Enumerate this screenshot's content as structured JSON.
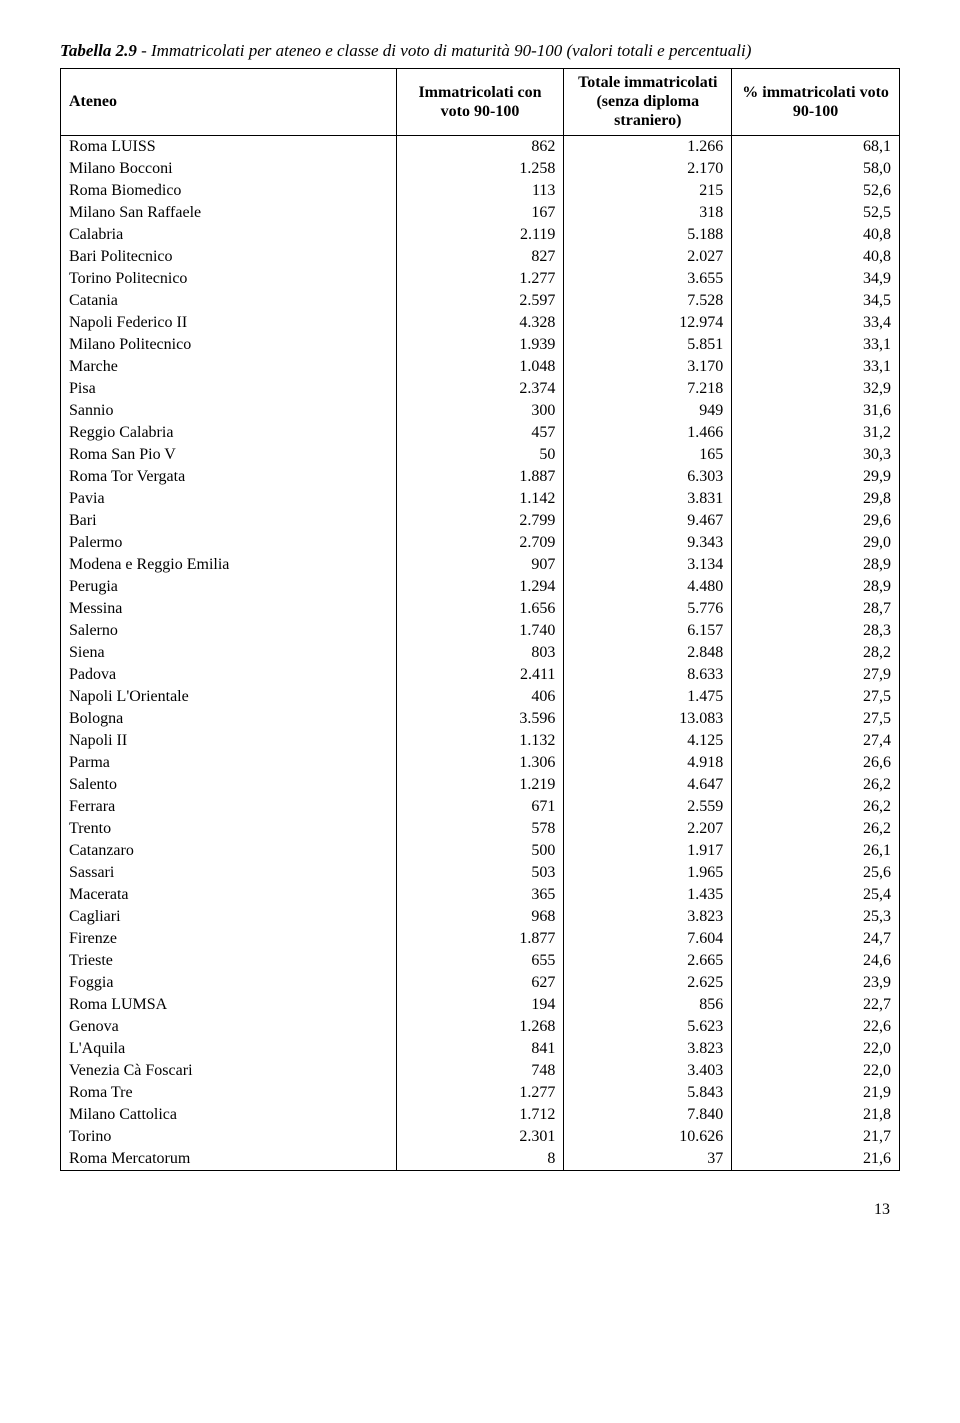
{
  "caption": {
    "prefix": "Tabella 2.9",
    "rest": " - Immatricolati per ateneo e classe di voto di maturità 90-100 (valori totali e percentuali)"
  },
  "table": {
    "columns": [
      "Ateneo",
      "Immatricolati con voto 90-100",
      "Totale immatricolati (senza diploma straniero)",
      "% immatricolati voto 90-100"
    ],
    "rows": [
      [
        "Roma LUISS",
        "862",
        "1.266",
        "68,1"
      ],
      [
        "Milano Bocconi",
        "1.258",
        "2.170",
        "58,0"
      ],
      [
        "Roma Biomedico",
        "113",
        "215",
        "52,6"
      ],
      [
        "Milano San Raffaele",
        "167",
        "318",
        "52,5"
      ],
      [
        "Calabria",
        "2.119",
        "5.188",
        "40,8"
      ],
      [
        "Bari Politecnico",
        "827",
        "2.027",
        "40,8"
      ],
      [
        "Torino Politecnico",
        "1.277",
        "3.655",
        "34,9"
      ],
      [
        "Catania",
        "2.597",
        "7.528",
        "34,5"
      ],
      [
        "Napoli Federico II",
        "4.328",
        "12.974",
        "33,4"
      ],
      [
        "Milano Politecnico",
        "1.939",
        "5.851",
        "33,1"
      ],
      [
        "Marche",
        "1.048",
        "3.170",
        "33,1"
      ],
      [
        "Pisa",
        "2.374",
        "7.218",
        "32,9"
      ],
      [
        "Sannio",
        "300",
        "949",
        "31,6"
      ],
      [
        "Reggio Calabria",
        "457",
        "1.466",
        "31,2"
      ],
      [
        "Roma San Pio V",
        "50",
        "165",
        "30,3"
      ],
      [
        "Roma Tor Vergata",
        "1.887",
        "6.303",
        "29,9"
      ],
      [
        "Pavia",
        "1.142",
        "3.831",
        "29,8"
      ],
      [
        "Bari",
        "2.799",
        "9.467",
        "29,6"
      ],
      [
        "Palermo",
        "2.709",
        "9.343",
        "29,0"
      ],
      [
        "Modena e Reggio Emilia",
        "907",
        "3.134",
        "28,9"
      ],
      [
        "Perugia",
        "1.294",
        "4.480",
        "28,9"
      ],
      [
        "Messina",
        "1.656",
        "5.776",
        "28,7"
      ],
      [
        "Salerno",
        "1.740",
        "6.157",
        "28,3"
      ],
      [
        "Siena",
        "803",
        "2.848",
        "28,2"
      ],
      [
        "Padova",
        "2.411",
        "8.633",
        "27,9"
      ],
      [
        "Napoli L'Orientale",
        "406",
        "1.475",
        "27,5"
      ],
      [
        "Bologna",
        "3.596",
        "13.083",
        "27,5"
      ],
      [
        "Napoli II",
        "1.132",
        "4.125",
        "27,4"
      ],
      [
        "Parma",
        "1.306",
        "4.918",
        "26,6"
      ],
      [
        "Salento",
        "1.219",
        "4.647",
        "26,2"
      ],
      [
        "Ferrara",
        "671",
        "2.559",
        "26,2"
      ],
      [
        "Trento",
        "578",
        "2.207",
        "26,2"
      ],
      [
        "Catanzaro",
        "500",
        "1.917",
        "26,1"
      ],
      [
        "Sassari",
        "503",
        "1.965",
        "25,6"
      ],
      [
        "Macerata",
        "365",
        "1.435",
        "25,4"
      ],
      [
        "Cagliari",
        "968",
        "3.823",
        "25,3"
      ],
      [
        "Firenze",
        "1.877",
        "7.604",
        "24,7"
      ],
      [
        "Trieste",
        "655",
        "2.665",
        "24,6"
      ],
      [
        "Foggia",
        "627",
        "2.625",
        "23,9"
      ],
      [
        "Roma LUMSA",
        "194",
        "856",
        "22,7"
      ],
      [
        "Genova",
        "1.268",
        "5.623",
        "22,6"
      ],
      [
        "L'Aquila",
        "841",
        "3.823",
        "22,0"
      ],
      [
        "Venezia Cà Foscari",
        "748",
        "3.403",
        "22,0"
      ],
      [
        "Roma Tre",
        "1.277",
        "5.843",
        "21,9"
      ],
      [
        "Milano Cattolica",
        "1.712",
        "7.840",
        "21,8"
      ],
      [
        "Torino",
        "2.301",
        "10.626",
        "21,7"
      ],
      [
        "Roma  Mercatorum",
        "8",
        "37",
        "21,6"
      ]
    ]
  },
  "page_number": "13"
}
